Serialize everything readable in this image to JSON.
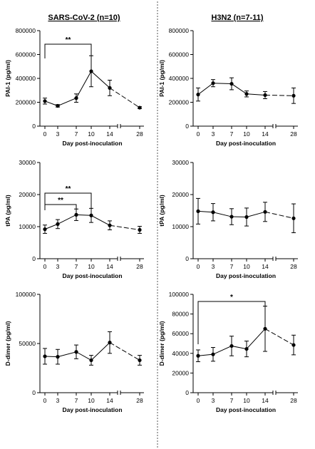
{
  "groups": [
    {
      "title": "SARS-CoV-2 (n=10)"
    },
    {
      "title": "H3N2 (n=7-11)"
    }
  ],
  "chart_data": [
    {
      "type": "line",
      "panel": "SARS-CoV-2 PAI-1",
      "ylabel": "PAI-1 (pg/ml)",
      "xlabel": "Day post-inoculation",
      "ylim": [
        0,
        800000
      ],
      "yticks": [
        0,
        200000,
        400000,
        600000,
        800000
      ],
      "ytick_labels": [
        "0",
        "200000",
        "400000",
        "600000",
        "800000"
      ],
      "xticks": [
        0,
        3,
        7,
        10,
        14,
        28
      ],
      "series": [
        {
          "x": [
            0,
            3,
            7,
            10,
            14,
            28
          ],
          "y": [
            210000,
            170000,
            235000,
            460000,
            320000,
            155000
          ],
          "err": [
            25000,
            10000,
            35000,
            130000,
            65000,
            8000
          ]
        }
      ],
      "significance": [
        {
          "from": 0,
          "to": 10,
          "label": "**"
        }
      ]
    },
    {
      "type": "line",
      "panel": "H3N2 PAI-1",
      "ylabel": "PAI-1 (pg/ml)",
      "xlabel": "Day post-inoculation",
      "ylim": [
        0,
        800000
      ],
      "yticks": [
        0,
        200000,
        400000,
        600000,
        800000
      ],
      "ytick_labels": [
        "0",
        "200000",
        "400000",
        "600000",
        "800000"
      ],
      "xticks": [
        0,
        3,
        7,
        10,
        14,
        28
      ],
      "series": [
        {
          "x": [
            0,
            3,
            7,
            10,
            14,
            28
          ],
          "y": [
            265000,
            360000,
            355000,
            270000,
            260000,
            255000
          ],
          "err": [
            55000,
            30000,
            50000,
            25000,
            30000,
            65000
          ]
        }
      ],
      "significance": []
    },
    {
      "type": "line",
      "panel": "SARS-CoV-2 tPA",
      "ylabel": "tPA (pg/ml)",
      "xlabel": "Day post-inoculation",
      "ylim": [
        0,
        30000
      ],
      "yticks": [
        0,
        10000,
        20000,
        30000
      ],
      "ytick_labels": [
        "0",
        "10000",
        "20000",
        "30000"
      ],
      "xticks": [
        0,
        3,
        7,
        10,
        14,
        28
      ],
      "series": [
        {
          "x": [
            0,
            3,
            7,
            10,
            14,
            28
          ],
          "y": [
            9200,
            10800,
            13700,
            13500,
            10400,
            9000
          ],
          "err": [
            1300,
            1400,
            1800,
            2200,
            1400,
            1100
          ]
        }
      ],
      "significance": [
        {
          "from": 0,
          "to": 10,
          "label": "**"
        },
        {
          "from": 0,
          "to": 7,
          "label": "**"
        }
      ]
    },
    {
      "type": "line",
      "panel": "H3N2 tPA",
      "ylabel": "tPA (pg/ml)",
      "xlabel": "Day post-inoculation",
      "ylim": [
        0,
        30000
      ],
      "yticks": [
        0,
        10000,
        20000,
        30000
      ],
      "ytick_labels": [
        "0",
        "10000",
        "20000",
        "30000"
      ],
      "xticks": [
        0,
        3,
        7,
        10,
        14,
        28
      ],
      "series": [
        {
          "x": [
            0,
            3,
            7,
            10,
            14,
            28
          ],
          "y": [
            14800,
            14500,
            13100,
            13000,
            14600,
            12600
          ],
          "err": [
            4000,
            2700,
            2500,
            2800,
            3000,
            4500
          ]
        }
      ],
      "significance": []
    },
    {
      "type": "line",
      "panel": "SARS-CoV-2 D-dimer",
      "ylabel": "D-dimer (pg/ml)",
      "xlabel": "Day post-inoculation",
      "ylim": [
        0,
        100000
      ],
      "yticks": [
        0,
        50000,
        100000
      ],
      "ytick_labels": [
        "0",
        "50000",
        "100000"
      ],
      "xticks": [
        0,
        3,
        7,
        10,
        14,
        28
      ],
      "series": [
        {
          "x": [
            0,
            3,
            7,
            10,
            14,
            28
          ],
          "y": [
            37000,
            36500,
            41500,
            33000,
            51000,
            33000
          ],
          "err": [
            8000,
            7500,
            7000,
            5000,
            11000,
            5000
          ]
        }
      ],
      "significance": []
    },
    {
      "type": "line",
      "panel": "H3N2 D-dimer",
      "ylabel": "D-dimer (pg/ml)",
      "xlabel": "Day post-inoculation",
      "ylim": [
        0,
        100000
      ],
      "yticks": [
        0,
        20000,
        40000,
        60000,
        80000,
        100000
      ],
      "ytick_labels": [
        "0",
        "20000",
        "40000",
        "60000",
        "80000",
        "100000"
      ],
      "xticks": [
        0,
        3,
        7,
        10,
        14,
        28
      ],
      "series": [
        {
          "x": [
            0,
            3,
            7,
            10,
            14,
            28
          ],
          "y": [
            37500,
            39000,
            47500,
            44500,
            65000,
            48500
          ],
          "err": [
            6000,
            7000,
            10000,
            8000,
            23000,
            10000
          ]
        }
      ],
      "significance": [
        {
          "from": 0,
          "to": 14,
          "label": "*"
        }
      ]
    }
  ]
}
